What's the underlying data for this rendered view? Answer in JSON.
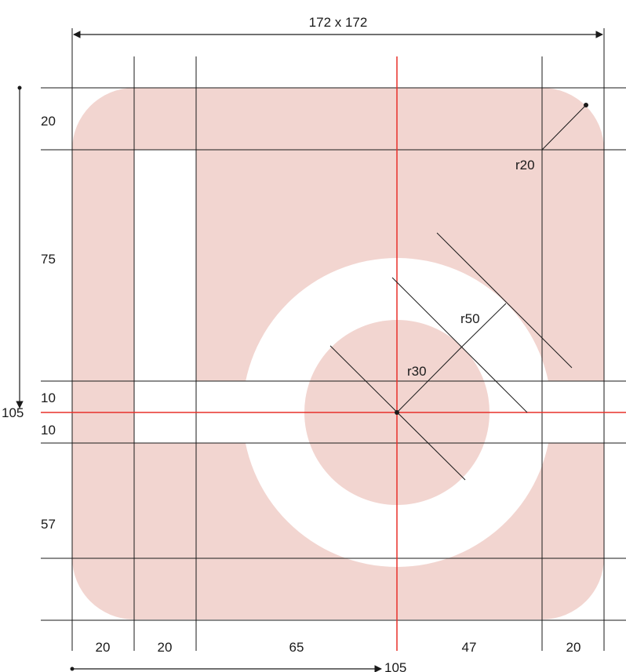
{
  "colors": {
    "shape_fill": "#f2d5d0",
    "cutout": "#ffffff",
    "grid_line": "#1a1a1a",
    "center_line": "#e8302a"
  },
  "icon": "camera-icon",
  "labels": {
    "size": "172 x 172",
    "corner_radius": "r20",
    "outer_radius": "r50",
    "inner_radius": "r30",
    "center_x": "105",
    "center_y": "105"
  },
  "vertical_segments": [
    "20",
    "75",
    "10",
    "10",
    "57"
  ],
  "horizontal_segments": [
    "20",
    "20",
    "65",
    "47",
    "20"
  ],
  "dimensions": {
    "total": 172,
    "corner_radius": 20,
    "lens_center": [
      105,
      105
    ],
    "lens_outer_radius": 50,
    "lens_inner_radius": 30,
    "vertical_cutout_x": [
      20,
      40
    ],
    "vertical_cutout_y": [
      20,
      95
    ],
    "horizontal_band_y": [
      95,
      115
    ]
  }
}
